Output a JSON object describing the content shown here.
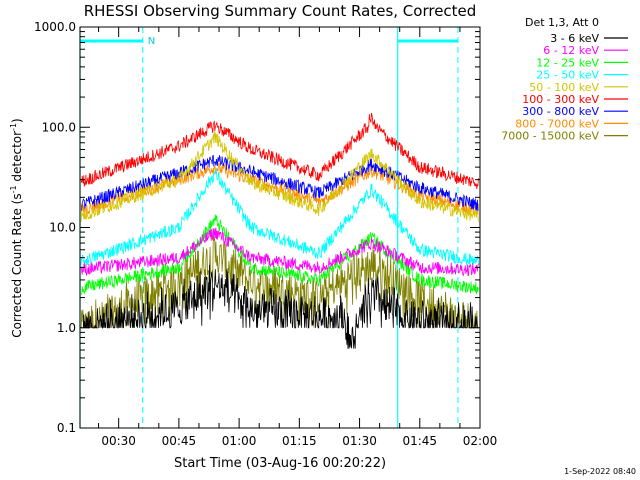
{
  "chart_data": {
    "type": "line",
    "title": "RHESSI Observing Summary Count Rates, Corrected",
    "xlabel": "Start Time (03-Aug-16 00:20:22)",
    "ylabel_main": "Corrected Count Rate (s",
    "ylabel_sup1": "-1",
    "ylabel_mid": " detector",
    "ylabel_sup2": "-1",
    "ylabel_end": ")",
    "timestamp": "1-Sep-2022 08:40",
    "y_scale": "log",
    "ylim": [
      0.1,
      1000
    ],
    "x_range_minutes": [
      20.37,
      120
    ],
    "x_ticks": [
      {
        "label": "00:30",
        "minutes": 30
      },
      {
        "label": "00:45",
        "minutes": 45
      },
      {
        "label": "01:00",
        "minutes": 60
      },
      {
        "label": "01:15",
        "minutes": 75
      },
      {
        "label": "01:30",
        "minutes": 90
      },
      {
        "label": "01:45",
        "minutes": 105
      },
      {
        "label": "02:00",
        "minutes": 120
      }
    ],
    "y_ticks": [
      {
        "label": "0.1",
        "value": 0.1
      },
      {
        "label": "1.0",
        "value": 1
      },
      {
        "label": "10.0",
        "value": 10
      },
      {
        "label": "100.0",
        "value": 100
      },
      {
        "label": "1000.0",
        "value": 1000
      }
    ],
    "legend_title": "Det 1,3, Att 0",
    "legend_position": "outside-top-right",
    "night_label": "N",
    "night_bars_minutes": [
      [
        20.37,
        36
      ],
      [
        99.5,
        114.5
      ]
    ],
    "dashed_markers_minutes": [
      36,
      114.5
    ],
    "solid_markers_minutes": [
      20.37,
      99.5
    ],
    "flare_peaks_minutes": [
      53.5,
      93
    ],
    "series": [
      {
        "name": "3 - 6 keV",
        "color": "#000000",
        "key_points": [
          [
            21,
            1
          ],
          [
            45,
            1.6
          ],
          [
            54,
            2.8
          ],
          [
            63,
            1.5
          ],
          [
            86,
            1.3
          ],
          [
            88,
            0.7
          ],
          [
            93,
            2.2
          ],
          [
            100,
            1.3
          ],
          [
            119,
            1
          ]
        ]
      },
      {
        "name": "6 - 12 keV",
        "color": "#ff00ff",
        "key_points": [
          [
            21,
            3.8
          ],
          [
            45,
            5
          ],
          [
            54,
            9
          ],
          [
            63,
            5
          ],
          [
            80,
            4
          ],
          [
            93,
            7
          ],
          [
            105,
            4
          ],
          [
            119,
            3.8
          ]
        ]
      },
      {
        "name": "12 - 25 keV",
        "color": "#00ff00",
        "key_points": [
          [
            21,
            2.5
          ],
          [
            45,
            4
          ],
          [
            54,
            12
          ],
          [
            63,
            4
          ],
          [
            80,
            3
          ],
          [
            93,
            8
          ],
          [
            105,
            3
          ],
          [
            119,
            2.5
          ]
        ]
      },
      {
        "name": "25 - 50 keV",
        "color": "#00ffff",
        "key_points": [
          [
            21,
            4.6
          ],
          [
            45,
            10
          ],
          [
            54,
            35
          ],
          [
            63,
            10
          ],
          [
            80,
            5.5
          ],
          [
            93,
            24
          ],
          [
            105,
            6
          ],
          [
            119,
            4.6
          ]
        ]
      },
      {
        "name": "50 - 100 keV",
        "color": "#d4c400",
        "key_points": [
          [
            21,
            13
          ],
          [
            45,
            30
          ],
          [
            54,
            80
          ],
          [
            63,
            28
          ],
          [
            80,
            15
          ],
          [
            93,
            55
          ],
          [
            105,
            18
          ],
          [
            119,
            13
          ]
        ]
      },
      {
        "name": "100 - 300 keV",
        "color": "#ff0000",
        "key_points": [
          [
            21,
            29
          ],
          [
            45,
            65
          ],
          [
            54,
            105
          ],
          [
            63,
            60
          ],
          [
            80,
            33
          ],
          [
            93,
            110
          ],
          [
            105,
            40
          ],
          [
            119,
            28
          ]
        ]
      },
      {
        "name": "300 - 800 keV",
        "color": "#0000ff",
        "key_points": [
          [
            21,
            17
          ],
          [
            45,
            35
          ],
          [
            54,
            47
          ],
          [
            63,
            36
          ],
          [
            80,
            22
          ],
          [
            93,
            43
          ],
          [
            105,
            25
          ],
          [
            119,
            17
          ]
        ]
      },
      {
        "name": "800 - 7000 keV",
        "color": "#ff8c00",
        "key_points": [
          [
            21,
            15
          ],
          [
            45,
            30
          ],
          [
            54,
            40
          ],
          [
            63,
            30
          ],
          [
            80,
            18
          ],
          [
            93,
            37
          ],
          [
            105,
            21
          ],
          [
            119,
            15
          ]
        ]
      },
      {
        "name": "7000 - 15000 keV",
        "color": "#808000",
        "key_points": [
          [
            21,
            1
          ],
          [
            45,
            3
          ],
          [
            54,
            5.5
          ],
          [
            63,
            3
          ],
          [
            80,
            2
          ],
          [
            93,
            4.5
          ],
          [
            105,
            2
          ],
          [
            119,
            1
          ]
        ]
      }
    ]
  }
}
